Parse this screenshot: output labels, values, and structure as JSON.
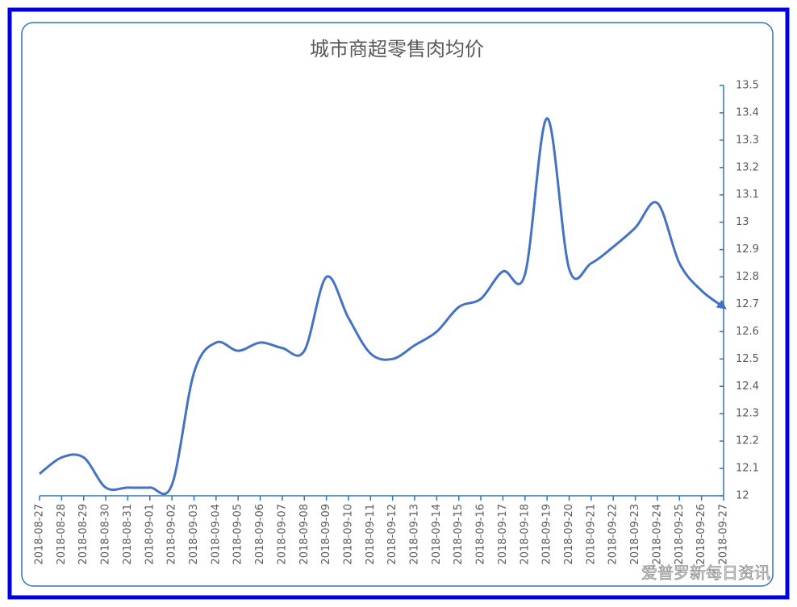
{
  "chart_data": {
    "type": "line",
    "title": "城市商超零售肉均价",
    "categories": [
      "2018-08-27",
      "2018-08-28",
      "2018-08-29",
      "2018-08-30",
      "2018-08-31",
      "2018-09-01",
      "2018-09-02",
      "2018-09-03",
      "2018-09-04",
      "2018-09-05",
      "2018-09-06",
      "2018-09-07",
      "2018-09-08",
      "2018-09-09",
      "2018-09-10",
      "2018-09-11",
      "2018-09-12",
      "2018-09-13",
      "2018-09-14",
      "2018-09-15",
      "2018-09-16",
      "2018-09-17",
      "2018-09-18",
      "2018-09-19",
      "2018-09-20",
      "2018-09-21",
      "2018-09-22",
      "2018-09-23",
      "2018-09-24",
      "2018-09-25",
      "2018-09-26",
      "2018-09-27"
    ],
    "values": [
      12.08,
      12.14,
      12.14,
      12.03,
      12.03,
      12.03,
      12.04,
      12.45,
      12.56,
      12.53,
      12.56,
      12.54,
      12.53,
      12.8,
      12.65,
      12.52,
      12.5,
      12.55,
      12.6,
      12.69,
      12.72,
      12.82,
      12.81,
      13.38,
      12.83,
      12.85,
      12.91,
      12.98,
      13.07,
      12.85,
      12.75,
      12.69
    ],
    "color": "#4472c4",
    "ylim": [
      12,
      13.5
    ],
    "yticks": [
      12,
      12.1,
      12.2,
      12.3,
      12.4,
      12.5,
      12.6,
      12.7,
      12.8,
      12.9,
      13,
      13.1,
      13.2,
      13.3,
      13.4,
      13.5
    ],
    "watermark": "爱普罗新每日资讯"
  }
}
